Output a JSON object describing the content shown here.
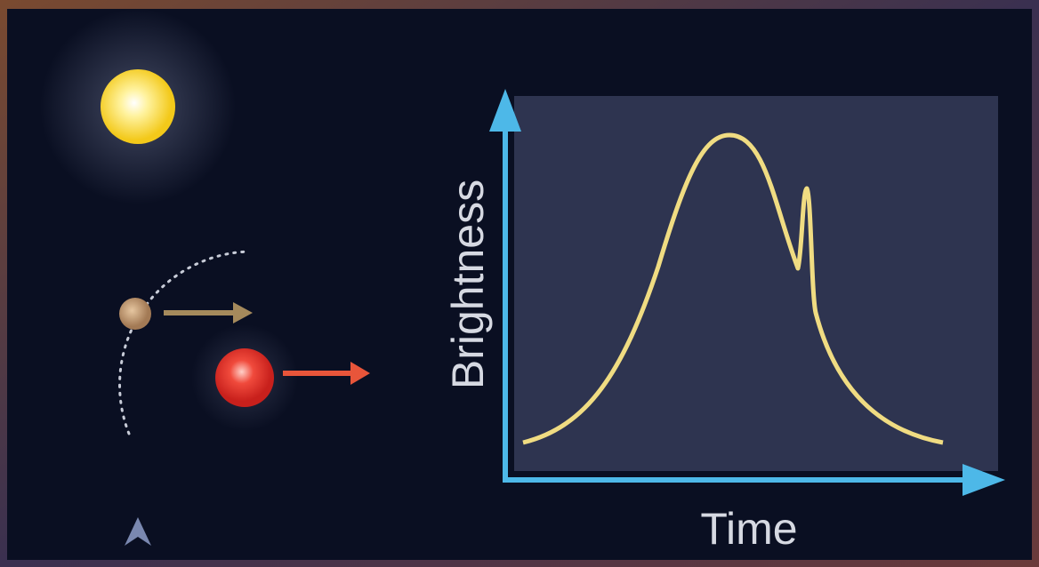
{
  "diagram": {
    "y_axis_label": "Brightness",
    "x_axis_label": "Time"
  }
}
